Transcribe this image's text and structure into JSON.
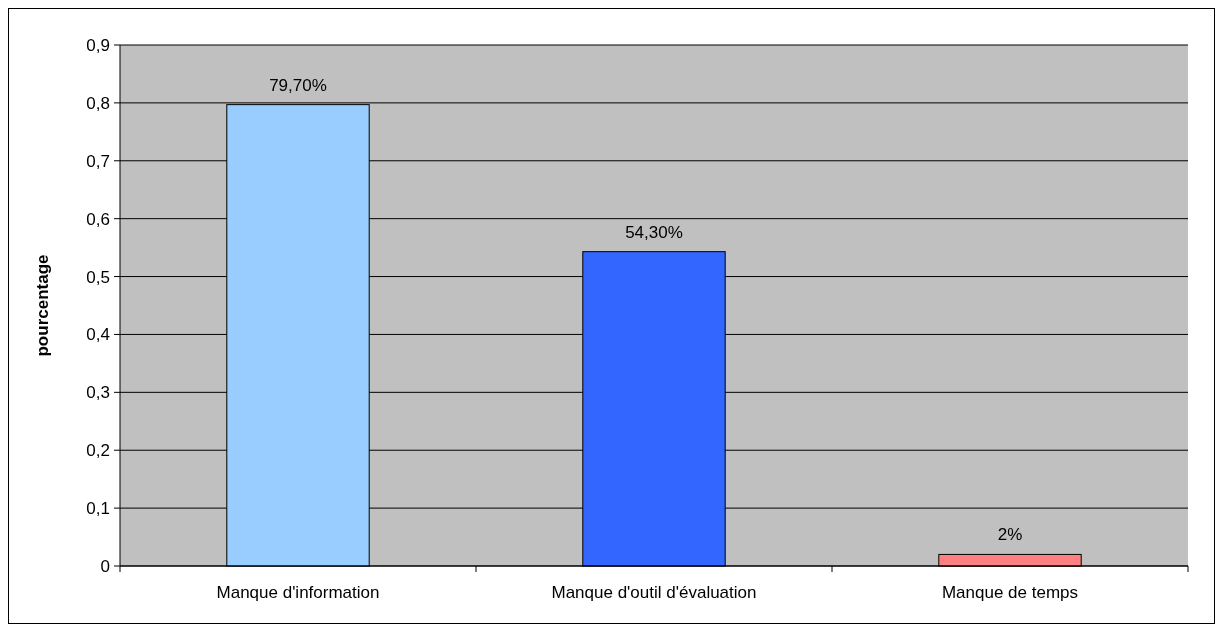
{
  "chart_data": {
    "type": "bar",
    "ylabel": "pourcentage",
    "categories": [
      "Manque d'information",
      "Manque d'outil d'évaluation",
      "Manque de temps"
    ],
    "values": [
      0.797,
      0.543,
      0.02
    ],
    "colors": [
      "#99ccff",
      "#3366ff",
      "#ff8080"
    ],
    "value_labels": [
      "79,70%",
      "54,30%",
      "2%"
    ],
    "ylim": [
      0,
      0.9
    ],
    "yticks": [
      0,
      {
        "value": 0.1,
        "label": "0,1"
      },
      {
        "value": 0.2,
        "label": "0,2"
      },
      {
        "value": 0.3,
        "label": "0,3"
      },
      {
        "value": 0.4,
        "label": "0,4"
      },
      {
        "value": 0.5,
        "label": "0,5"
      },
      {
        "value": 0.6,
        "label": "0,6"
      },
      {
        "value": 0.7,
        "label": "0,7"
      },
      {
        "value": 0.8,
        "label": "0,8"
      },
      {
        "value": 0.9,
        "label": "0,9"
      }
    ],
    "grid": "y"
  }
}
